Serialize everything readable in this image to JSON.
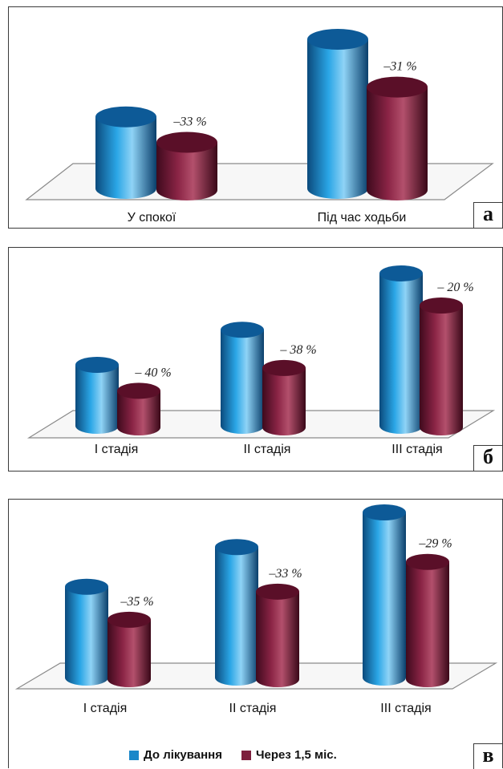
{
  "legend": {
    "series1": "До лікування",
    "series2": "Через 1,5 міс."
  },
  "colors": {
    "series1": "#1a87c9",
    "series2": "#7d1f3d"
  },
  "chart_data": [
    {
      "type": "bar",
      "panel_label": "а",
      "categories": [
        "У спокої",
        "Під час ходьби"
      ],
      "series": [
        {
          "name": "До лікування",
          "values": [
            48,
            100
          ]
        },
        {
          "name": "Через 1,5 міс.",
          "values": [
            32,
            69
          ]
        }
      ],
      "annotations": [
        "–33 %",
        "–31 %"
      ],
      "ylim": [
        0,
        100
      ],
      "legend_position": ""
    },
    {
      "type": "bar",
      "panel_label": "б",
      "categories": [
        "І стадія",
        "ІІ стадія",
        "ІІІ стадія"
      ],
      "series": [
        {
          "name": "До лікування",
          "values": [
            40,
            63,
            100
          ]
        },
        {
          "name": "Через 1,5 міс.",
          "values": [
            24,
            39,
            80
          ]
        }
      ],
      "annotations": [
        "– 40 %",
        "– 38 %",
        "– 20 %"
      ],
      "ylim": [
        0,
        100
      ],
      "legend_position": ""
    },
    {
      "type": "bar",
      "panel_label": "в",
      "categories": [
        "І стадія",
        "ІІ стадія",
        "ІІІ стадія"
      ],
      "series": [
        {
          "name": "До лікування",
          "values": [
            55,
            79,
            100
          ]
        },
        {
          "name": "Через 1,5 міс.",
          "values": [
            36,
            53,
            71
          ]
        }
      ],
      "annotations": [
        "–35 %",
        "–33 %",
        "–29 %"
      ],
      "ylim": [
        0,
        100
      ],
      "legend_position": "bottom"
    }
  ]
}
